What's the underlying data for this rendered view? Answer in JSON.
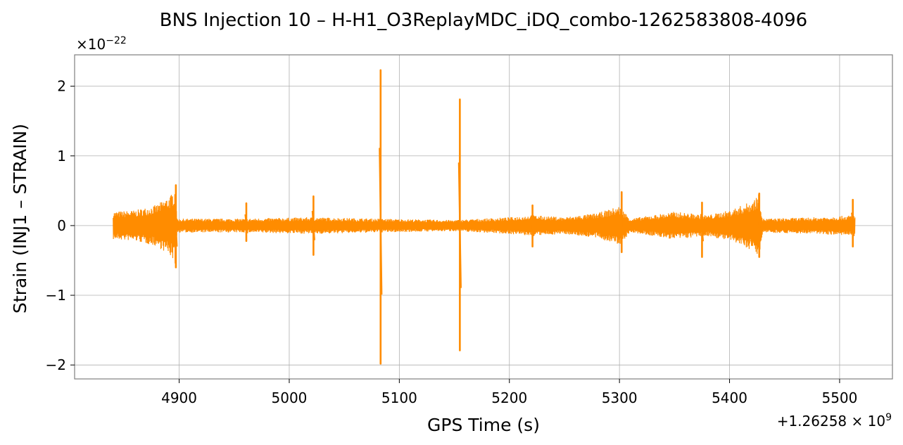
{
  "chart_data": {
    "type": "line",
    "title": "BNS Injection 10 – H-H1_O3ReplayMDC_iDQ_combo-1262583808-4096",
    "xlabel": "GPS Time (s)",
    "ylabel": "Strain (INJ1 – STRAIN)",
    "x_offset_label": "+1.26258",
    "x_offset_exponent": "9",
    "y_scale_label": "×10",
    "y_scale_exponent": "−22",
    "xlim": [
      4805,
      5548
    ],
    "ylim": [
      -2.2,
      2.45
    ],
    "x_ticks": [
      4900,
      5000,
      5100,
      5200,
      5300,
      5400,
      5500
    ],
    "x_tick_labels": [
      "4900",
      "5000",
      "5100",
      "5200",
      "5300",
      "5400",
      "5500"
    ],
    "y_ticks": [
      -2,
      -1,
      0,
      1,
      2
    ],
    "y_tick_labels": [
      "−2",
      "−1",
      "0",
      "1",
      "2"
    ],
    "grid": true,
    "line_color": "#ff8c00",
    "series": [
      {
        "x_range": [
          4840,
          5514
        ],
        "baseline_amplitude": 0.08,
        "envelope_points": [
          [
            4840,
            0.2
          ],
          [
            4860,
            0.22
          ],
          [
            4880,
            0.3
          ],
          [
            4893,
            0.45
          ],
          [
            4897,
            0.58
          ],
          [
            4898,
            0.1
          ],
          [
            4960,
            0.1
          ],
          [
            5020,
            0.12
          ],
          [
            5080,
            0.1
          ],
          [
            5150,
            0.08
          ],
          [
            5200,
            0.12
          ],
          [
            5220,
            0.15
          ],
          [
            5250,
            0.12
          ],
          [
            5280,
            0.18
          ],
          [
            5300,
            0.28
          ],
          [
            5310,
            0.1
          ],
          [
            5350,
            0.2
          ],
          [
            5380,
            0.15
          ],
          [
            5400,
            0.22
          ],
          [
            5420,
            0.35
          ],
          [
            5427,
            0.46
          ],
          [
            5430,
            0.1
          ],
          [
            5480,
            0.12
          ],
          [
            5514,
            0.15
          ]
        ],
        "spikes": [
          {
            "x": 4897,
            "max": 0.58,
            "min": -0.6
          },
          {
            "x": 4961,
            "max": 0.32,
            "min": -0.22
          },
          {
            "x": 5022,
            "max": 0.42,
            "min": -0.42
          },
          {
            "x": 5083,
            "max": 2.23,
            "min": -1.98
          },
          {
            "x": 5155,
            "max": 1.81,
            "min": -1.79
          },
          {
            "x": 5221,
            "max": 0.29,
            "min": -0.3
          },
          {
            "x": 5302,
            "max": 0.48,
            "min": -0.38
          },
          {
            "x": 5375,
            "max": 0.33,
            "min": -0.45
          },
          {
            "x": 5427,
            "max": 0.46,
            "min": -0.45
          },
          {
            "x": 5512,
            "max": 0.37,
            "min": -0.3
          }
        ]
      }
    ]
  }
}
